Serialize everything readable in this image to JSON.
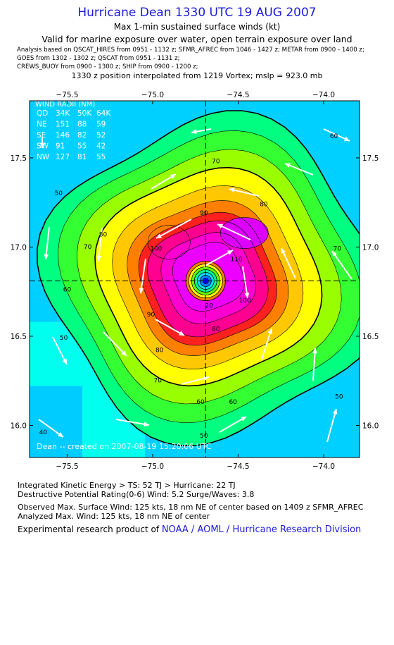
{
  "header": {
    "title": "Hurricane Dean 1330 UTC 19 AUG 2007",
    "subtitle": "Max 1-min sustained surface winds (kt)",
    "validity": "Valid for marine exposure over water, open terrain exposure over land",
    "meta_lines": [
      "Analysis based on   QSCAT_HIRES from 0951 - 1132 z;   SFMR_AFREC from 1046 - 1427 z;   METAR from 0900 - 1400 z;",
      "GOES from 1302 - 1302 z;   QSCAT from 0951 - 1131 z;",
      "CREWS_BUOY from 0900 - 1300 z;   SHIP from 0900 - 1200 z;"
    ],
    "position_note": "1330 z position interpolated from 1219 Vortex; mslp = 923.0 mb"
  },
  "chart_data": {
    "type": "heatmap",
    "title": "Hurricane Dean 1330 UTC 19 AUG 2007",
    "xlim": [
      -75.72,
      -73.79
    ],
    "ylim": [
      15.82,
      17.82
    ],
    "x_ticks": [
      -75.5,
      -75.0,
      -74.5,
      -74.0
    ],
    "x_tick_labels": [
      "−75.5",
      "−75.0",
      "−74.5",
      "−74.0"
    ],
    "y_ticks": [
      16.0,
      16.5,
      17.0,
      17.5
    ],
    "y_tick_labels": [
      "16.0",
      "16.5",
      "17.0",
      "17.5"
    ],
    "center": {
      "lon": -74.69,
      "lat": 16.81
    },
    "max_wind_kt": 125,
    "contour_levels_kt": [
      10,
      20,
      30,
      40,
      50,
      60,
      70,
      80,
      90,
      100,
      110,
      120
    ],
    "contour_labels": [
      {
        "text": "60",
        "lon": -73.94,
        "lat": 17.61
      },
      {
        "text": "70",
        "lon": -74.63,
        "lat": 17.47
      },
      {
        "text": "80",
        "lon": -74.35,
        "lat": 17.23
      },
      {
        "text": "90",
        "lon": -74.7,
        "lat": 17.18
      },
      {
        "text": "100",
        "lon": -74.98,
        "lat": 16.98
      },
      {
        "text": "110",
        "lon": -74.51,
        "lat": 16.92
      },
      {
        "text": "80",
        "lon": -75.29,
        "lat": 17.06
      },
      {
        "text": "70",
        "lon": -75.38,
        "lat": 16.99
      },
      {
        "text": "70",
        "lon": -73.92,
        "lat": 16.98
      },
      {
        "text": "50",
        "lon": -75.55,
        "lat": 17.29
      },
      {
        "text": "60",
        "lon": -75.5,
        "lat": 16.75
      },
      {
        "text": "50",
        "lon": -75.52,
        "lat": 16.48
      },
      {
        "text": "90",
        "lon": -75.01,
        "lat": 16.61
      },
      {
        "text": "80",
        "lon": -74.63,
        "lat": 16.53
      },
      {
        "text": "100",
        "lon": -74.46,
        "lat": 16.69
      },
      {
        "text": "20",
        "lon": -74.67,
        "lat": 16.66
      },
      {
        "text": "80",
        "lon": -74.96,
        "lat": 16.41
      },
      {
        "text": "70",
        "lon": -74.97,
        "lat": 16.24
      },
      {
        "text": "60",
        "lon": -74.72,
        "lat": 16.12
      },
      {
        "text": "60",
        "lon": -74.53,
        "lat": 16.12
      },
      {
        "text": "50",
        "lon": -74.7,
        "lat": 15.93
      },
      {
        "text": "50",
        "lon": -73.91,
        "lat": 16.15
      },
      {
        "text": "40",
        "lon": -75.64,
        "lat": 15.95
      }
    ],
    "wind_radii": {
      "title": "WIND RADII (NM)",
      "header": [
        "QD",
        "34K",
        "50K",
        "64K"
      ],
      "rows": [
        [
          "NE",
          "151",
          "88",
          "59"
        ],
        [
          "SE",
          "146",
          "82",
          "52"
        ],
        [
          "SW",
          "91",
          "55",
          "42"
        ],
        [
          "NW",
          "127",
          "81",
          "55"
        ]
      ]
    },
    "credit": "Dean -- created on 2007-08-19  15:20:06 UTC"
  },
  "footer": {
    "ike": "Integrated Kinetic Energy > TS: 52 TJ   > Hurricane: 22 TJ",
    "dpr": "Destructive Potential Rating(0-6)   Wind: 5.2 Surge/Waves: 3.8",
    "observed_max": "Observed Max. Surface Wind: 125 kts, 18 nm NE of center based on 1409 z SFMR_AFREC",
    "analyzed_max": "Analyzed Max. Wind: 125 kts, 18 nm NE of center",
    "research_prefix": "Experimental research product of ",
    "research_link": "NOAA / AOML / Hurricane Research Division"
  }
}
